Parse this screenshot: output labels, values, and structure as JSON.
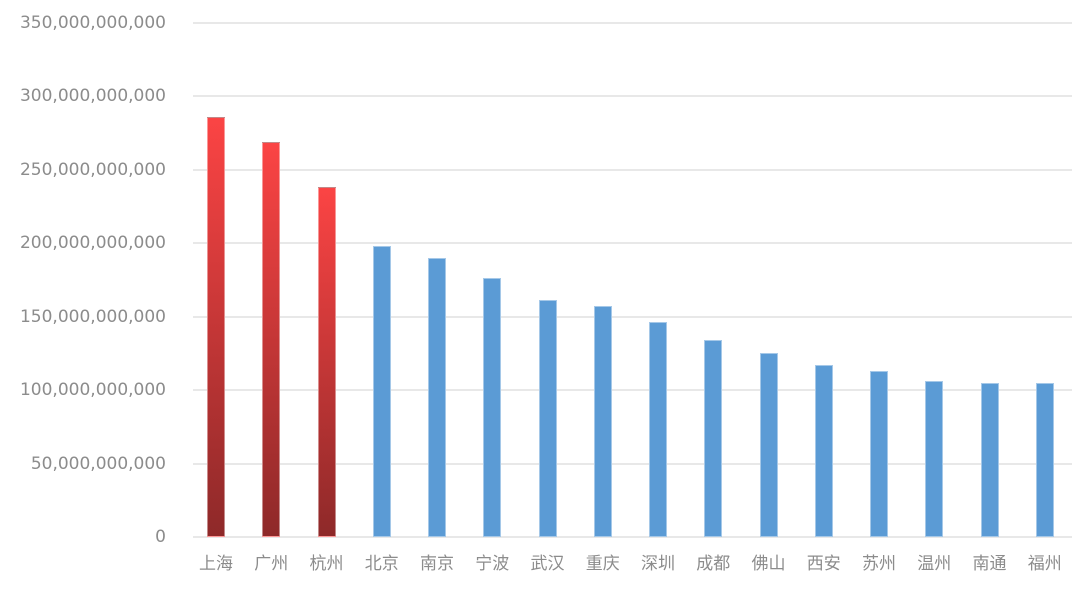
{
  "chart_data": {
    "type": "bar",
    "title": "",
    "xlabel": "",
    "ylabel": "",
    "legend": "none",
    "grid": true,
    "categories": [
      "上海",
      "广州",
      "杭州",
      "北京",
      "南京",
      "宁波",
      "武汉",
      "重庆",
      "深圳",
      "成都",
      "佛山",
      "西安",
      "苏州",
      "温州",
      "南通",
      "福州"
    ],
    "values": [
      286000000000,
      269000000000,
      238000000000,
      198000000000,
      190000000000,
      176000000000,
      161000000000,
      157000000000,
      146000000000,
      134000000000,
      125000000000,
      117000000000,
      113000000000,
      106000000000,
      105000000000,
      105000000000
    ],
    "highlight_count": 3,
    "y_axis": {
      "min": 0,
      "max": 350000000000,
      "tick_values": [
        0,
        50000000000,
        100000000000,
        150000000000,
        200000000000,
        250000000000,
        300000000000,
        350000000000
      ],
      "tick_labels": [
        "0",
        "50,000,000,000",
        "100,000,000,000",
        "150,000,000,000",
        "200,000,000,000",
        "250,000,000,000",
        "300,000,000,000",
        "350,000,000,000"
      ]
    },
    "colors": {
      "bar_default": "#5B9BD5",
      "bar_highlight_gradient_top": "#FB4444",
      "bar_highlight_gradient_bottom": "#8E2929",
      "gridline": "#E8E8E8",
      "axis_text": "#8C8C8C",
      "background": "#FFFFFF"
    }
  }
}
